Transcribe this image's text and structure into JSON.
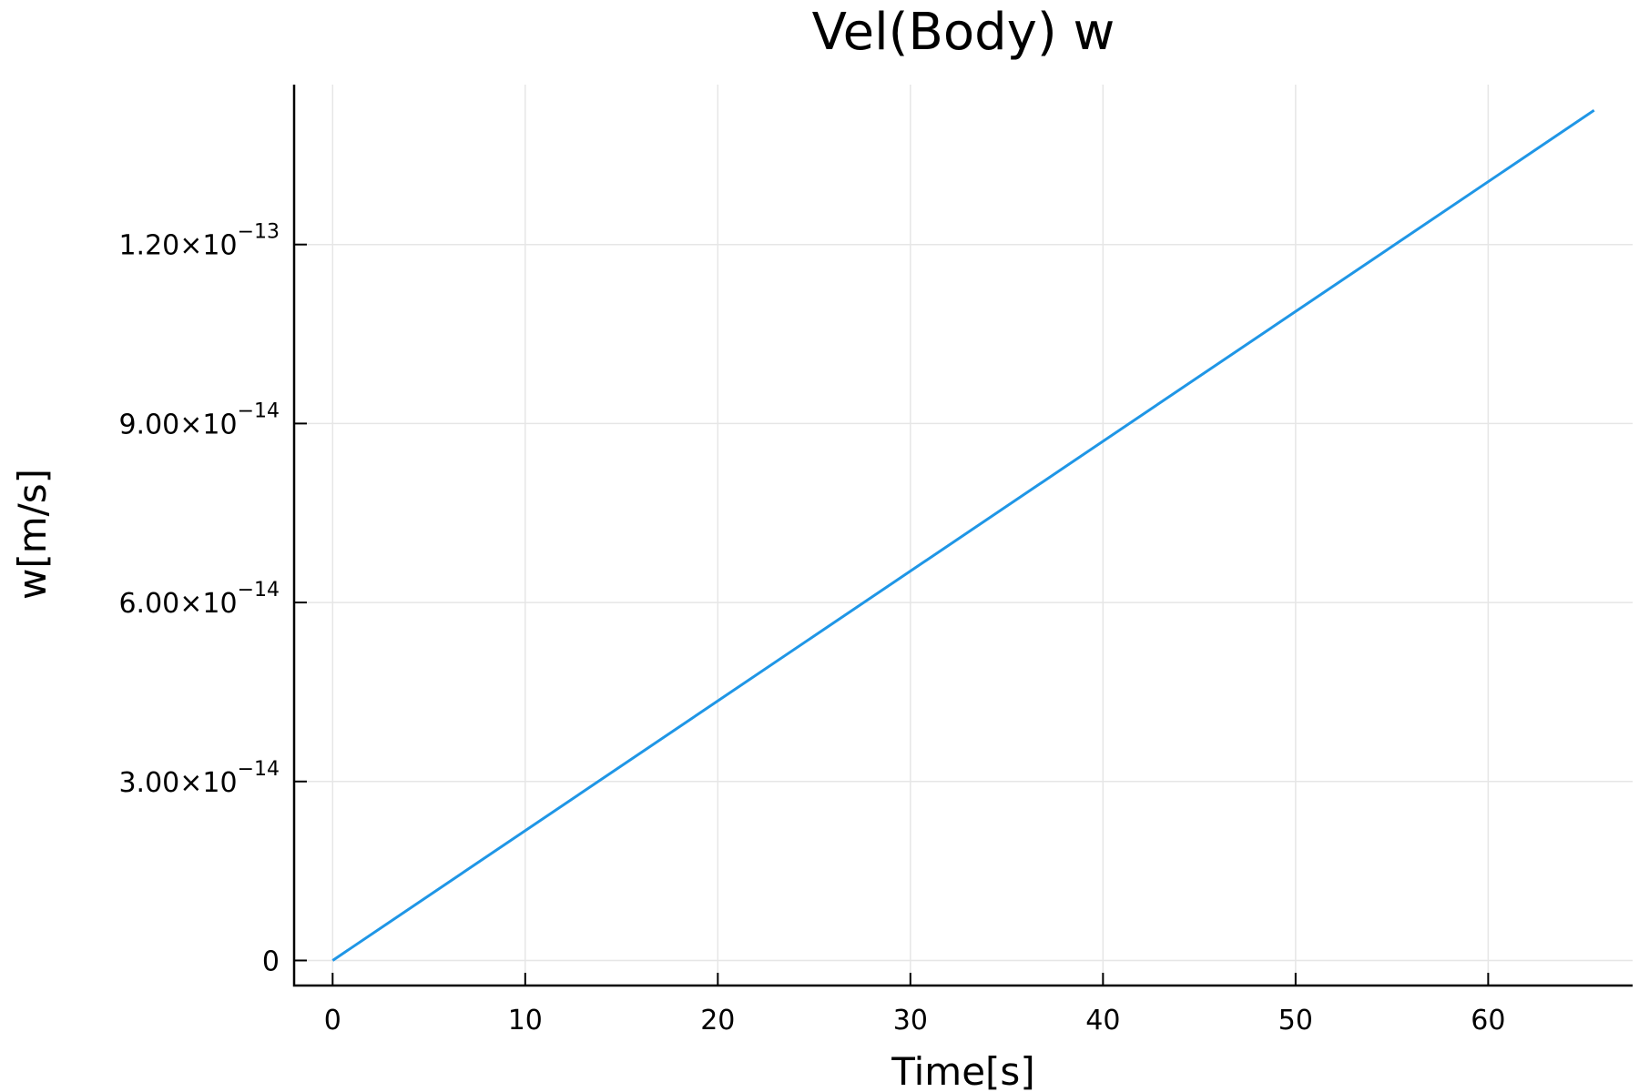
{
  "chart_data": {
    "type": "line",
    "title": "Vel(Body) w",
    "xlabel": "Time[s]",
    "ylabel": "w[m/s]",
    "xlim": [
      -2,
      67.5
    ],
    "ylim": [
      -4.2e-15,
      1.468e-13
    ],
    "grid": true,
    "x_ticks": [
      {
        "value": 0,
        "label": "0"
      },
      {
        "value": 10,
        "label": "10"
      },
      {
        "value": 20,
        "label": "20"
      },
      {
        "value": 30,
        "label": "30"
      },
      {
        "value": 40,
        "label": "40"
      },
      {
        "value": 50,
        "label": "50"
      },
      {
        "value": 60,
        "label": "60"
      }
    ],
    "y_ticks": [
      {
        "value": 0,
        "label": "0",
        "exp": ""
      },
      {
        "value": 3e-14,
        "label": "3.00×10",
        "exp": "−14"
      },
      {
        "value": 6e-14,
        "label": "6.00×10",
        "exp": "−14"
      },
      {
        "value": 9e-14,
        "label": "9.00×10",
        "exp": "−14"
      },
      {
        "value": 1.2e-13,
        "label": "1.20×10",
        "exp": "−13"
      }
    ],
    "series": [
      {
        "color": "#1f96e6",
        "x": [
          0,
          65.5
        ],
        "y": [
          0,
          1.425e-13
        ]
      }
    ]
  }
}
